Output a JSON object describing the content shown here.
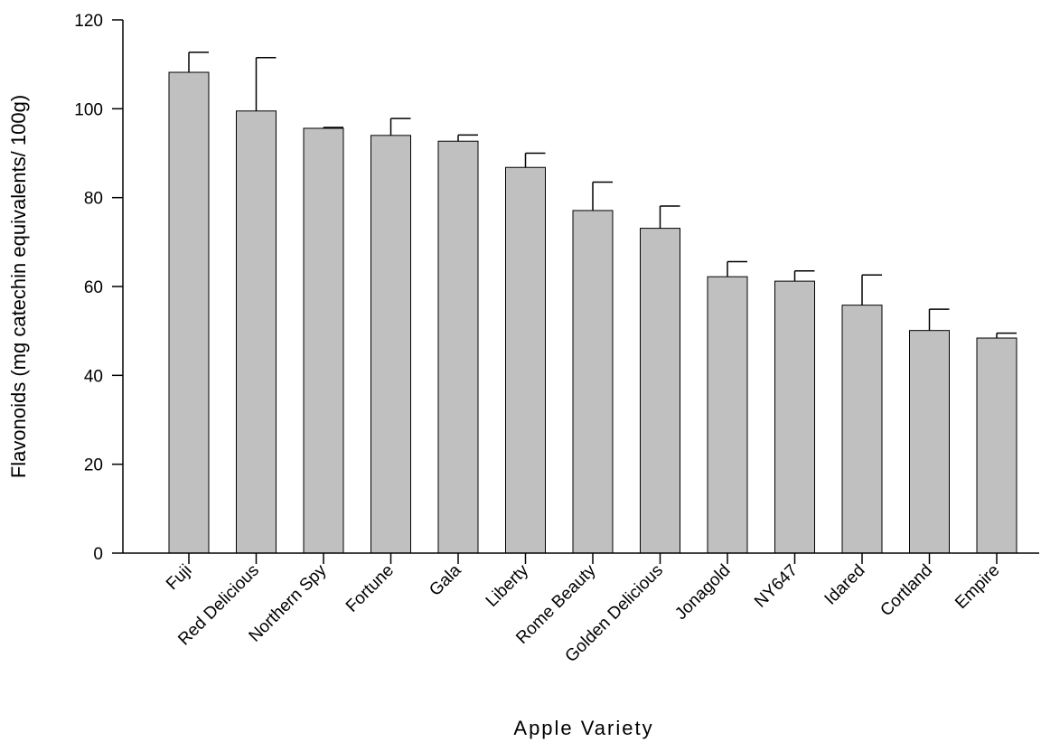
{
  "chart_data": {
    "type": "bar",
    "title": "",
    "xlabel": "Apple Variety",
    "ylabel": "Flavonoids (mg catechin equivalents/ 100g)",
    "ylim": [
      0,
      120
    ],
    "yticks": [
      0,
      20,
      40,
      60,
      80,
      100,
      120
    ],
    "grid": false,
    "bar_color": "#c0c0c0",
    "categories": [
      "Fuji",
      "Red Delicious",
      "Northern Spy",
      "Fortune",
      "Gala",
      "Liberty",
      "Rome Beauty",
      "Golden Delicious",
      "Jonagold",
      "NY647",
      "Idared",
      "Cortland",
      "Empire"
    ],
    "values": [
      108.2,
      99.5,
      95.6,
      94.0,
      92.7,
      86.8,
      77.1,
      73.1,
      62.2,
      61.2,
      55.8,
      50.1,
      48.4
    ],
    "errors": [
      4.5,
      12.0,
      0.2,
      3.8,
      1.4,
      3.2,
      6.4,
      5.0,
      3.4,
      2.3,
      6.8,
      4.8,
      1.1
    ]
  }
}
